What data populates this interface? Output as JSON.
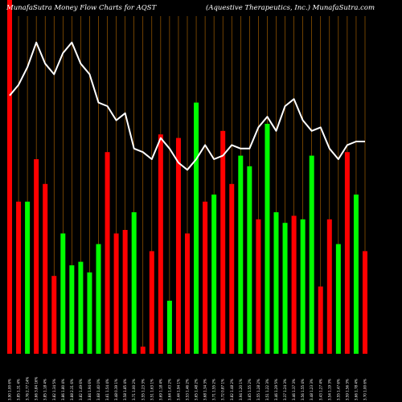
{
  "title_left": "MunafaSutra  Money Flow  Charts for AQST",
  "title_right": "(Aquestive   Therapeutics,  Inc.) MunafaSutra.com",
  "colors": {
    "background": "#000000",
    "up": "#00ff00",
    "down": "#ff0000",
    "grid": "#b86a00",
    "line": "#ffffff"
  },
  "chart_data": {
    "type": "bar",
    "grid": true,
    "ylim": [
      0,
      100
    ],
    "categories": [
      "3.90 1.00 6%",
      "3.85 1.31 4%",
      "3.76 2.77 14%",
      "3.66 3.84 16%",
      "3.85 1.18 4%",
      "3.82 1.34 5%",
      "3.86 1.80 4%",
      "3.88 2.31 6%",
      "3.82 1.49 6%",
      "3.84 1.94 6%",
      "3.68 1.40 0%",
      "3.61 1.54 4%",
      "3.48 0.39 1%",
      "3.58 1.85 4%",
      "3.71 1.00 2%",
      "3.55 1.23 3%",
      "3.51 1.63 1%",
      "3.69 1.18 4%",
      "3.64 1.43 2%",
      "3.44 1.94 1%",
      "3.53 1.46 2%",
      "3.65 1.48 2%",
      "3.68 1.34 3%",
      "3.71 1.55 2%",
      "3.72 0.87 1%",
      "3.82 1.48 2%",
      "3.94 1.20 1%",
      "3.65 1.55 2%",
      "3.55 1.28 2%",
      "3.51 1.22 3%",
      "3.46 1.29 5%",
      "3.37 1.24 3%",
      "3.46 1.37 3%",
      "3.56 1.55 4%",
      "3.48 1.23 3%",
      "3.43 1.27 4%",
      "3.54 1.19 3%",
      "3.55 1.47 6%",
      "3.59 1.56 3%",
      "3.66 1.78 4%",
      "3.70 1.00 6%"
    ],
    "values": [
      100,
      43,
      43,
      55,
      48,
      22,
      34,
      25,
      26,
      23,
      31,
      57,
      34,
      35,
      40,
      2,
      29,
      62,
      15,
      61,
      34,
      71,
      43,
      45,
      63,
      48,
      56,
      53,
      38,
      65,
      40,
      37,
      39,
      38,
      56,
      19,
      38,
      31,
      57,
      45,
      29
    ],
    "directions": [
      "down",
      "down",
      "up",
      "down",
      "down",
      "down",
      "up",
      "up",
      "up",
      "up",
      "up",
      "down",
      "down",
      "down",
      "up",
      "down",
      "down",
      "down",
      "up",
      "down",
      "down",
      "up",
      "down",
      "up",
      "down",
      "down",
      "up",
      "up",
      "down",
      "up",
      "up",
      "up",
      "down",
      "up",
      "up",
      "down",
      "down",
      "up",
      "down",
      "up",
      "down"
    ],
    "line_values": [
      73,
      76,
      81,
      88,
      82,
      79,
      85,
      88,
      82,
      79,
      71,
      70,
      66,
      68,
      58,
      57,
      55,
      61,
      58,
      54,
      52,
      55,
      59,
      55,
      56,
      59,
      58,
      58,
      64,
      67,
      63,
      70,
      72,
      66,
      63,
      64,
      58,
      55,
      59,
      60,
      60
    ]
  }
}
